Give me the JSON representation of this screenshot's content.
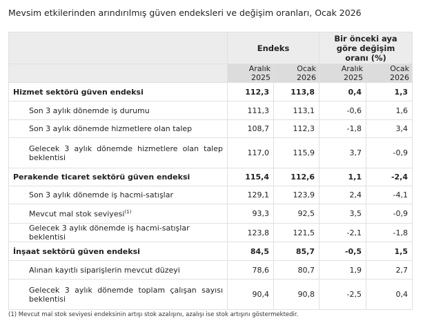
{
  "title": "Mevsim etkilerinden arındırılmış güven endeksleri ve değişim oranları, Ocak 2026",
  "header": {
    "group1": "Endeks",
    "group2": "Bir önceki aya göre değişim oranı (%)",
    "cols": [
      "Aralık 2025",
      "Ocak 2026",
      "Aralık 2025",
      "Ocak 2026"
    ]
  },
  "rows": [
    {
      "label": "Hizmet sektörü güven endeksi",
      "values": [
        "112,3",
        "113,8",
        "0,4",
        "1,3"
      ]
    },
    {
      "label": "Son 3 aylık dönemde iş durumu",
      "values": [
        "111,3",
        "113,1",
        "-0,6",
        "1,6"
      ]
    },
    {
      "label": "Son 3 aylık dönemde hizmetlere olan talep",
      "values": [
        "108,7",
        "112,3",
        "-1,8",
        "3,4"
      ]
    },
    {
      "label": "Gelecek 3 aylık dönemde hizmetlere olan talep beklentisi",
      "values": [
        "117,0",
        "115,9",
        "3,7",
        "-0,9"
      ]
    },
    {
      "label": "Perakende ticaret sektörü güven endeksi",
      "values": [
        "115,4",
        "112,6",
        "1,1",
        "-2,4"
      ]
    },
    {
      "label": "Son 3 aylık dönemde iş hacmi-satışlar",
      "values": [
        "129,1",
        "123,9",
        "2,4",
        "-4,1"
      ]
    },
    {
      "label": "Mevcut mal stok seviyesi",
      "sup": "(1)",
      "values": [
        "93,3",
        "92,5",
        "3,5",
        "-0,9"
      ]
    },
    {
      "label": "Gelecek 3 aylık dönemde iş hacmi-satışlar beklentisi",
      "values": [
        "123,8",
        "121,5",
        "-2,1",
        "-1,8"
      ]
    },
    {
      "label": "İnşaat sektörü güven endeksi",
      "values": [
        "84,5",
        "85,7",
        "-0,5",
        "1,5"
      ]
    },
    {
      "label": "Alınan kayıtlı siparişlerin mevcut düzeyi",
      "values": [
        "78,6",
        "80,7",
        "1,9",
        "2,7"
      ]
    },
    {
      "label": "Gelecek 3 aylık dönemde toplam çalışan sayısı beklentisi",
      "values": [
        "90,4",
        "90,8",
        "-2,5",
        "0,4"
      ]
    }
  ],
  "footnote": "(1) Mevcut mal stok seviyesi endeksinin artışı stok azalışını, azalışı ise stok artışını göstermektedir."
}
